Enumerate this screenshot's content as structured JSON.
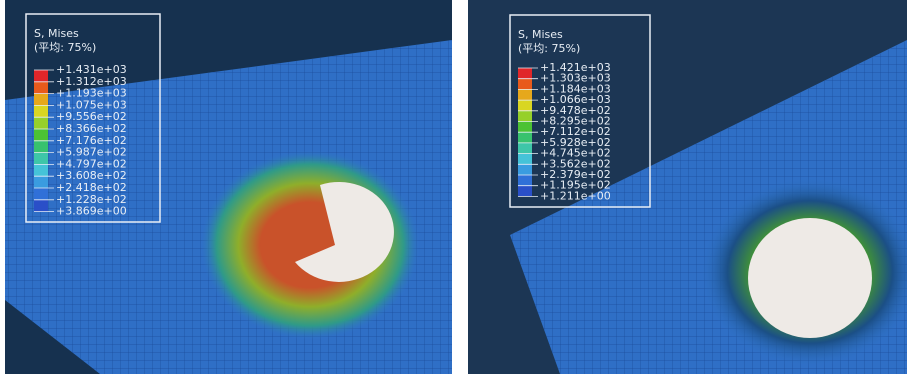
{
  "panels": [
    {
      "legend": {
        "title": "S, Mises",
        "subtitle": "(平均: 75%)",
        "values": [
          "+1.431e+03",
          "+1.312e+03",
          "+1.193e+03",
          "+1.075e+03",
          "+9.556e+02",
          "+8.366e+02",
          "+7.176e+02",
          "+5.987e+02",
          "+4.797e+02",
          "+3.608e+02",
          "+2.418e+02",
          "+1.228e+02",
          "+3.869e+00"
        ]
      }
    },
    {
      "legend": {
        "title": "S, Mises",
        "subtitle": "(平均: 75%)",
        "values": [
          "+1.421e+03",
          "+1.303e+03",
          "+1.184e+03",
          "+1.066e+03",
          "+9.478e+02",
          "+8.295e+02",
          "+7.112e+02",
          "+5.928e+02",
          "+4.745e+02",
          "+3.562e+02",
          "+2.379e+02",
          "+1.195e+02",
          "+1.211e+00"
        ]
      }
    }
  ]
}
